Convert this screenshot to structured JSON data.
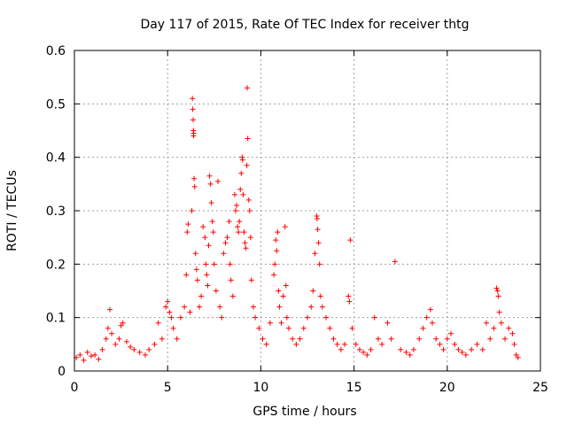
{
  "chart_data": {
    "type": "scatter",
    "title": "Day 117 of 2015, Rate Of TEC Index for receiver thtg",
    "xlabel": "GPS time / hours",
    "ylabel": "ROTI / TECUs",
    "xlim": [
      0,
      25
    ],
    "ylim": [
      0,
      0.6
    ],
    "xticks": [
      0,
      5,
      10,
      15,
      20,
      25
    ],
    "yticks": [
      0,
      0.1,
      0.2,
      0.3,
      0.4,
      0.5,
      0.6
    ],
    "xtick_labels": [
      "0",
      "5",
      "10",
      "15",
      "20",
      "25"
    ],
    "ytick_labels": [
      "0",
      "0.1",
      "0.2",
      "0.3",
      "0.4",
      "0.5",
      "0.6"
    ],
    "grid": true,
    "marker": "plus",
    "color": "#ff0000",
    "series": [
      {
        "name": "ROTI",
        "points": [
          [
            0.1,
            0.025
          ],
          [
            0.3,
            0.03
          ],
          [
            0.5,
            0.02
          ],
          [
            0.7,
            0.035
          ],
          [
            0.9,
            0.028
          ],
          [
            1.1,
            0.03
          ],
          [
            1.3,
            0.022
          ],
          [
            1.5,
            0.04
          ],
          [
            1.7,
            0.06
          ],
          [
            1.8,
            0.08
          ],
          [
            1.9,
            0.115
          ],
          [
            2.0,
            0.07
          ],
          [
            2.2,
            0.05
          ],
          [
            2.4,
            0.06
          ],
          [
            2.5,
            0.085
          ],
          [
            2.6,
            0.09
          ],
          [
            2.8,
            0.055
          ],
          [
            3.0,
            0.045
          ],
          [
            3.2,
            0.04
          ],
          [
            3.5,
            0.035
          ],
          [
            3.8,
            0.03
          ],
          [
            4.0,
            0.04
          ],
          [
            4.3,
            0.05
          ],
          [
            4.5,
            0.09
          ],
          [
            4.7,
            0.06
          ],
          [
            4.9,
            0.12
          ],
          [
            5.0,
            0.13
          ],
          [
            5.1,
            0.11
          ],
          [
            5.2,
            0.1
          ],
          [
            5.3,
            0.08
          ],
          [
            5.5,
            0.06
          ],
          [
            5.7,
            0.1
          ],
          [
            5.9,
            0.12
          ],
          [
            6.0,
            0.18
          ],
          [
            6.05,
            0.26
          ],
          [
            6.1,
            0.275
          ],
          [
            6.2,
            0.11
          ],
          [
            6.3,
            0.3
          ],
          [
            6.33,
            0.51
          ],
          [
            6.35,
            0.49
          ],
          [
            6.37,
            0.47
          ],
          [
            6.38,
            0.45
          ],
          [
            6.39,
            0.44
          ],
          [
            6.4,
            0.445
          ],
          [
            6.42,
            0.36
          ],
          [
            6.45,
            0.345
          ],
          [
            6.5,
            0.22
          ],
          [
            6.55,
            0.19
          ],
          [
            6.6,
            0.17
          ],
          [
            6.7,
            0.12
          ],
          [
            6.8,
            0.14
          ],
          [
            6.9,
            0.27
          ],
          [
            7.0,
            0.25
          ],
          [
            7.05,
            0.2
          ],
          [
            7.1,
            0.18
          ],
          [
            7.15,
            0.16
          ],
          [
            7.2,
            0.235
          ],
          [
            7.25,
            0.365
          ],
          [
            7.3,
            0.35
          ],
          [
            7.35,
            0.315
          ],
          [
            7.4,
            0.28
          ],
          [
            7.45,
            0.26
          ],
          [
            7.5,
            0.2
          ],
          [
            7.6,
            0.15
          ],
          [
            7.7,
            0.355
          ],
          [
            7.8,
            0.12
          ],
          [
            7.9,
            0.1
          ],
          [
            8.0,
            0.22
          ],
          [
            8.1,
            0.24
          ],
          [
            8.2,
            0.25
          ],
          [
            8.3,
            0.28
          ],
          [
            8.35,
            0.2
          ],
          [
            8.4,
            0.17
          ],
          [
            8.5,
            0.14
          ],
          [
            8.6,
            0.33
          ],
          [
            8.65,
            0.3
          ],
          [
            8.7,
            0.31
          ],
          [
            8.75,
            0.27
          ],
          [
            8.8,
            0.26
          ],
          [
            8.85,
            0.28
          ],
          [
            8.9,
            0.34
          ],
          [
            8.95,
            0.37
          ],
          [
            9.0,
            0.4
          ],
          [
            9.02,
            0.395
          ],
          [
            9.05,
            0.33
          ],
          [
            9.1,
            0.26
          ],
          [
            9.15,
            0.24
          ],
          [
            9.2,
            0.23
          ],
          [
            9.25,
            0.385
          ],
          [
            9.27,
            0.53
          ],
          [
            9.3,
            0.435
          ],
          [
            9.35,
            0.32
          ],
          [
            9.4,
            0.3
          ],
          [
            9.45,
            0.25
          ],
          [
            9.5,
            0.17
          ],
          [
            9.6,
            0.12
          ],
          [
            9.7,
            0.1
          ],
          [
            9.9,
            0.08
          ],
          [
            10.1,
            0.06
          ],
          [
            10.3,
            0.05
          ],
          [
            10.5,
            0.09
          ],
          [
            10.7,
            0.18
          ],
          [
            10.75,
            0.2
          ],
          [
            10.8,
            0.245
          ],
          [
            10.85,
            0.225
          ],
          [
            10.9,
            0.26
          ],
          [
            10.95,
            0.15
          ],
          [
            11.0,
            0.12
          ],
          [
            11.1,
            0.09
          ],
          [
            11.2,
            0.14
          ],
          [
            11.3,
            0.27
          ],
          [
            11.35,
            0.16
          ],
          [
            11.4,
            0.1
          ],
          [
            11.5,
            0.08
          ],
          [
            11.7,
            0.06
          ],
          [
            11.9,
            0.05
          ],
          [
            12.1,
            0.06
          ],
          [
            12.3,
            0.08
          ],
          [
            12.5,
            0.1
          ],
          [
            12.7,
            0.12
          ],
          [
            12.8,
            0.15
          ],
          [
            12.9,
            0.22
          ],
          [
            13.0,
            0.29
          ],
          [
            13.02,
            0.285
          ],
          [
            13.05,
            0.265
          ],
          [
            13.1,
            0.24
          ],
          [
            13.15,
            0.2
          ],
          [
            13.2,
            0.14
          ],
          [
            13.3,
            0.12
          ],
          [
            13.5,
            0.1
          ],
          [
            13.7,
            0.08
          ],
          [
            13.9,
            0.06
          ],
          [
            14.1,
            0.05
          ],
          [
            14.3,
            0.04
          ],
          [
            14.5,
            0.05
          ],
          [
            14.7,
            0.14
          ],
          [
            14.75,
            0.13
          ],
          [
            14.8,
            0.245
          ],
          [
            14.9,
            0.08
          ],
          [
            15.1,
            0.05
          ],
          [
            15.3,
            0.04
          ],
          [
            15.5,
            0.035
          ],
          [
            15.7,
            0.03
          ],
          [
            15.9,
            0.04
          ],
          [
            16.1,
            0.1
          ],
          [
            16.3,
            0.06
          ],
          [
            16.5,
            0.05
          ],
          [
            16.8,
            0.09
          ],
          [
            17.0,
            0.06
          ],
          [
            17.2,
            0.205
          ],
          [
            17.5,
            0.04
          ],
          [
            17.8,
            0.035
          ],
          [
            18.0,
            0.03
          ],
          [
            18.2,
            0.04
          ],
          [
            18.5,
            0.06
          ],
          [
            18.7,
            0.08
          ],
          [
            18.9,
            0.1
          ],
          [
            19.1,
            0.115
          ],
          [
            19.2,
            0.09
          ],
          [
            19.4,
            0.06
          ],
          [
            19.6,
            0.05
          ],
          [
            19.8,
            0.04
          ],
          [
            20.0,
            0.06
          ],
          [
            20.2,
            0.07
          ],
          [
            20.4,
            0.05
          ],
          [
            20.6,
            0.04
          ],
          [
            20.8,
            0.035
          ],
          [
            21.0,
            0.03
          ],
          [
            21.3,
            0.04
          ],
          [
            21.6,
            0.05
          ],
          [
            21.9,
            0.04
          ],
          [
            22.1,
            0.09
          ],
          [
            22.3,
            0.06
          ],
          [
            22.5,
            0.08
          ],
          [
            22.65,
            0.155
          ],
          [
            22.7,
            0.15
          ],
          [
            22.75,
            0.14
          ],
          [
            22.8,
            0.11
          ],
          [
            22.9,
            0.09
          ],
          [
            23.1,
            0.06
          ],
          [
            23.3,
            0.08
          ],
          [
            23.5,
            0.07
          ],
          [
            23.6,
            0.05
          ],
          [
            23.7,
            0.03
          ],
          [
            23.8,
            0.025
          ]
        ]
      }
    ]
  }
}
